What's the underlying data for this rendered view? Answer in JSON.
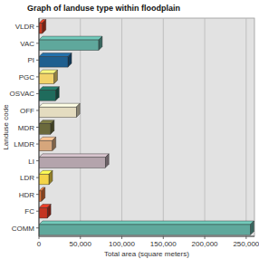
{
  "chart_data": {
    "type": "bar",
    "orientation": "horizontal",
    "title": "Graph of landuse type within floodplain",
    "x_label": "Total area (square meters)",
    "y_label": "Landuse code",
    "categories": [
      "VLDR",
      "VAC",
      "PI",
      "PGC",
      "OSVAC",
      "OFF",
      "MDR",
      "LMDR",
      "LI",
      "LDR",
      "HDR",
      "FC",
      "COMM"
    ],
    "values": [
      4000,
      72000,
      35000,
      18000,
      20000,
      45000,
      14000,
      16000,
      80000,
      12000,
      3000,
      10000,
      255000
    ],
    "colors": [
      "#c8381f",
      "#5fa89c",
      "#1f5f8f",
      "#f2d36a",
      "#1f6b5c",
      "#e4dcc0",
      "#6b6a3c",
      "#d6a67c",
      "#b4a4ac",
      "#f4d448",
      "#e07034",
      "#c43422",
      "#5fa89c"
    ],
    "xlim": [
      0,
      260000
    ],
    "xticks": [
      0,
      {
        "value": 50000,
        "label": "50,000"
      },
      {
        "value": 100000,
        "label": "100,000"
      },
      {
        "value": 150000,
        "label": "150,000"
      },
      {
        "value": 200000,
        "label": "200,000"
      },
      {
        "value": 250000,
        "label": "250,000"
      }
    ],
    "grid": true
  }
}
